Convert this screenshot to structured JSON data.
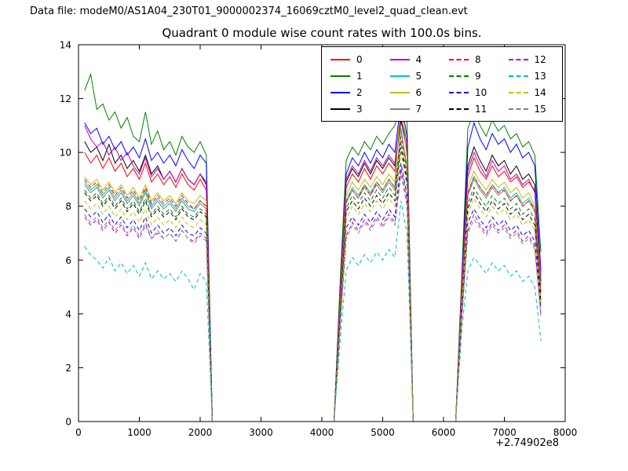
{
  "header": {
    "data_file_label": "Data file: modeM0/AS1A04_230T01_9000002374_16069cztM0_level2_quad_clean.evt"
  },
  "chart_data": {
    "type": "line",
    "title": "Quadrant 0 module wise count rates with 100.0s bins.",
    "xlabel": "",
    "ylabel": "",
    "xlim": [
      0,
      8000
    ],
    "ylim": [
      0,
      14
    ],
    "xticks": [
      0,
      1000,
      2000,
      3000,
      4000,
      5000,
      6000,
      7000,
      8000
    ],
    "yticks": [
      0,
      2,
      4,
      6,
      8,
      10,
      12,
      14
    ],
    "x_offset_label": "+2.74902e8",
    "legend_position": "upper right",
    "grid": false,
    "x": [
      100,
      200,
      300,
      400,
      500,
      600,
      700,
      800,
      900,
      1000,
      1100,
      1200,
      1300,
      1400,
      1500,
      1600,
      1700,
      1800,
      1900,
      2000,
      2100,
      2200,
      4200,
      4300,
      4400,
      4500,
      4600,
      4700,
      4800,
      4900,
      5000,
      5100,
      5200,
      5300,
      5400,
      5500,
      6200,
      6300,
      6400,
      6500,
      6600,
      6700,
      6800,
      6900,
      7000,
      7100,
      7200,
      7300,
      7400,
      7500,
      7600
    ],
    "series": [
      {
        "name": "0",
        "color": "#ff0000",
        "dash": false,
        "values": [
          10.0,
          9.6,
          9.9,
          9.4,
          9.8,
          9.3,
          9.6,
          9.1,
          9.4,
          9.0,
          9.6,
          8.9,
          9.2,
          8.8,
          9.1,
          8.7,
          9.2,
          8.8,
          8.6,
          9.0,
          8.6,
          0,
          0,
          4.5,
          8.7,
          9.2,
          8.9,
          9.4,
          9.0,
          9.5,
          9.2,
          9.6,
          9.3,
          11.3,
          10.0,
          0,
          0,
          4.9,
          9.1,
          9.8,
          9.3,
          9.0,
          9.5,
          9.1,
          9.3,
          8.9,
          9.1,
          8.7,
          8.9,
          8.6,
          5.0
        ]
      },
      {
        "name": "1",
        "color": "#008000",
        "dash": false,
        "values": [
          12.3,
          12.9,
          11.6,
          11.8,
          11.2,
          11.5,
          10.9,
          11.3,
          10.6,
          10.4,
          11.5,
          10.3,
          10.8,
          10.1,
          10.4,
          9.9,
          10.6,
          10.2,
          10.0,
          10.4,
          9.9,
          0,
          0,
          5.2,
          9.7,
          10.2,
          9.9,
          10.4,
          10.1,
          10.6,
          10.3,
          10.7,
          11.0,
          12.1,
          11.2,
          0,
          0,
          5.5,
          10.9,
          11.5,
          11.0,
          10.6,
          11.2,
          10.8,
          11.0,
          10.5,
          10.7,
          10.2,
          10.4,
          9.9,
          6.3
        ]
      },
      {
        "name": "2",
        "color": "#0000ff",
        "dash": false,
        "values": [
          11.1,
          10.7,
          10.9,
          10.3,
          10.6,
          10.1,
          10.4,
          9.9,
          10.2,
          9.8,
          10.5,
          9.7,
          10.0,
          9.6,
          9.9,
          9.5,
          10.1,
          9.7,
          9.4,
          9.9,
          9.6,
          0,
          0,
          4.8,
          9.2,
          9.8,
          9.5,
          10.0,
          9.6,
          10.1,
          9.8,
          10.3,
          10.0,
          11.9,
          10.6,
          0,
          0,
          5.2,
          10.2,
          11.1,
          10.5,
          10.1,
          10.7,
          10.3,
          10.5,
          10.0,
          10.3,
          9.8,
          10.0,
          9.5,
          5.6
        ]
      },
      {
        "name": "3",
        "color": "#000000",
        "dash": false,
        "values": [
          10.4,
          10.0,
          10.2,
          9.7,
          10.3,
          9.6,
          9.9,
          9.4,
          9.7,
          9.3,
          9.9,
          9.2,
          9.5,
          9.0,
          9.3,
          8.9,
          9.4,
          9.0,
          8.8,
          9.2,
          8.8,
          0,
          0,
          4.6,
          8.9,
          9.4,
          9.1,
          9.6,
          9.2,
          9.7,
          9.4,
          9.8,
          9.5,
          11.2,
          10.1,
          0,
          0,
          5.0,
          9.5,
          10.2,
          9.7,
          9.3,
          9.9,
          9.5,
          9.7,
          9.2,
          9.5,
          9.0,
          9.2,
          8.8,
          5.2
        ]
      },
      {
        "name": "4",
        "color": "#bf00bf",
        "dash": false,
        "values": [
          11.0,
          10.5,
          10.2,
          10.4,
          9.9,
          10.2,
          9.7,
          10.0,
          9.5,
          9.2,
          9.8,
          9.1,
          9.4,
          9.0,
          9.3,
          8.9,
          9.4,
          9.0,
          8.8,
          9.2,
          8.9,
          0,
          0,
          4.7,
          9.0,
          9.5,
          9.2,
          9.7,
          9.3,
          9.8,
          9.5,
          9.9,
          9.6,
          11.6,
          10.3,
          0,
          0,
          5.1,
          9.3,
          10.0,
          9.5,
          9.1,
          9.7,
          9.3,
          9.5,
          9.0,
          9.2,
          8.8,
          9.0,
          8.5,
          5.4
        ]
      },
      {
        "name": "5",
        "color": "#00bfbf",
        "dash": false,
        "values": [
          8.9,
          8.6,
          8.8,
          8.4,
          8.7,
          8.3,
          8.6,
          8.2,
          8.5,
          8.1,
          8.6,
          8.0,
          8.3,
          8.0,
          8.2,
          7.9,
          8.3,
          8.0,
          7.9,
          8.2,
          8.0,
          0,
          0,
          4.2,
          8.2,
          8.7,
          8.4,
          8.8,
          8.5,
          8.9,
          8.6,
          9.0,
          8.7,
          10.8,
          9.5,
          0,
          0,
          4.6,
          8.5,
          9.1,
          8.7,
          8.4,
          8.8,
          8.5,
          8.7,
          8.3,
          8.5,
          8.1,
          8.3,
          7.9,
          4.8
        ]
      },
      {
        "name": "6",
        "color": "#bfbf00",
        "dash": false,
        "values": [
          9.1,
          8.8,
          9.0,
          8.6,
          8.9,
          8.5,
          8.8,
          8.4,
          8.7,
          8.3,
          8.8,
          8.2,
          8.5,
          8.2,
          8.4,
          8.1,
          8.5,
          8.2,
          8.1,
          8.4,
          8.2,
          0,
          0,
          4.3,
          8.4,
          8.9,
          8.6,
          9.0,
          8.7,
          9.1,
          8.8,
          9.2,
          8.9,
          11.9,
          9.8,
          0,
          0,
          4.7,
          8.7,
          9.3,
          8.9,
          8.6,
          9.0,
          8.7,
          8.9,
          8.5,
          8.7,
          8.3,
          8.5,
          8.0,
          5.0
        ]
      },
      {
        "name": "7",
        "color": "#7f7f7f",
        "dash": false,
        "values": [
          8.8,
          8.5,
          8.7,
          8.3,
          8.6,
          8.2,
          8.5,
          8.1,
          8.4,
          8.0,
          8.5,
          7.9,
          8.2,
          7.9,
          8.1,
          7.8,
          8.2,
          7.9,
          7.8,
          8.1,
          7.9,
          0,
          0,
          4.1,
          8.1,
          8.6,
          8.3,
          8.7,
          8.4,
          8.8,
          8.5,
          8.9,
          8.6,
          10.9,
          9.4,
          0,
          0,
          4.5,
          8.4,
          9.0,
          8.6,
          8.3,
          8.7,
          8.4,
          8.6,
          8.2,
          8.4,
          8.0,
          8.2,
          7.8,
          4.9
        ]
      },
      {
        "name": "8",
        "color": "#ff0000",
        "dash": true,
        "values": [
          9.0,
          8.7,
          8.9,
          8.5,
          8.8,
          8.4,
          8.7,
          8.3,
          8.6,
          8.2,
          8.7,
          8.1,
          8.4,
          8.1,
          8.3,
          8.0,
          8.4,
          8.1,
          7.9,
          8.2,
          8.0,
          0,
          0,
          4.2,
          8.2,
          8.6,
          8.3,
          8.8,
          8.4,
          8.9,
          8.6,
          9.0,
          8.7,
          10.6,
          9.3,
          0,
          0,
          4.6,
          8.5,
          9.1,
          8.7,
          8.4,
          8.8,
          8.5,
          8.6,
          8.2,
          8.4,
          8.0,
          8.2,
          7.9,
          4.7
        ]
      },
      {
        "name": "9",
        "color": "#008000",
        "dash": true,
        "values": [
          8.6,
          8.3,
          8.5,
          8.1,
          8.4,
          8.0,
          8.3,
          7.9,
          8.2,
          7.8,
          8.3,
          7.7,
          8.0,
          7.7,
          7.9,
          7.6,
          8.0,
          7.7,
          7.6,
          7.9,
          7.7,
          0,
          0,
          4.0,
          7.9,
          8.4,
          8.1,
          8.5,
          8.2,
          8.6,
          8.3,
          8.7,
          8.4,
          10.4,
          9.1,
          0,
          0,
          4.4,
          8.1,
          8.7,
          8.3,
          8.0,
          8.4,
          8.1,
          8.3,
          7.9,
          8.1,
          7.7,
          7.9,
          7.5,
          4.5
        ]
      },
      {
        "name": "10",
        "color": "#0000ff",
        "dash": true,
        "values": [
          7.9,
          7.6,
          7.8,
          7.4,
          7.7,
          7.3,
          7.6,
          7.2,
          7.5,
          7.1,
          7.6,
          7.0,
          7.3,
          7.0,
          7.2,
          6.9,
          7.3,
          7.0,
          6.9,
          7.2,
          7.0,
          0,
          0,
          3.7,
          7.2,
          7.6,
          7.3,
          7.7,
          7.4,
          7.8,
          7.5,
          7.9,
          7.6,
          9.6,
          8.4,
          0,
          0,
          4.0,
          7.4,
          7.9,
          7.5,
          7.2,
          7.6,
          7.3,
          7.5,
          7.1,
          7.3,
          6.9,
          7.1,
          6.7,
          4.2
        ]
      },
      {
        "name": "11",
        "color": "#000000",
        "dash": true,
        "values": [
          8.5,
          8.2,
          8.4,
          8.0,
          8.3,
          7.9,
          8.2,
          7.8,
          8.1,
          7.7,
          8.2,
          7.6,
          7.9,
          7.6,
          7.8,
          7.5,
          7.9,
          7.6,
          7.5,
          7.8,
          7.6,
          0,
          0,
          3.9,
          7.8,
          8.2,
          7.9,
          8.3,
          8.0,
          8.4,
          8.1,
          8.5,
          8.2,
          10.2,
          8.9,
          0,
          0,
          4.3,
          7.9,
          8.5,
          8.1,
          7.8,
          8.2,
          7.9,
          8.1,
          7.7,
          7.9,
          7.5,
          7.7,
          7.3,
          4.4
        ]
      },
      {
        "name": "12",
        "color": "#bf00bf",
        "dash": true,
        "values": [
          7.6,
          7.3,
          7.5,
          7.1,
          7.4,
          7.0,
          7.3,
          6.9,
          7.2,
          6.8,
          7.3,
          6.8,
          7.0,
          6.8,
          7.0,
          6.7,
          7.1,
          6.8,
          6.7,
          7.0,
          6.8,
          0,
          0,
          3.5,
          6.9,
          7.4,
          7.1,
          7.5,
          7.2,
          7.6,
          7.3,
          7.7,
          7.4,
          9.4,
          8.2,
          0,
          0,
          3.9,
          7.1,
          7.7,
          7.3,
          7.0,
          7.4,
          7.1,
          7.3,
          6.9,
          7.1,
          6.7,
          6.9,
          6.5,
          4.0
        ]
      },
      {
        "name": "13",
        "color": "#00bfbf",
        "dash": true,
        "values": [
          6.5,
          6.2,
          6.0,
          5.7,
          6.1,
          5.6,
          5.9,
          5.5,
          5.8,
          5.4,
          5.9,
          5.3,
          5.6,
          5.3,
          5.5,
          5.2,
          5.6,
          5.3,
          4.9,
          5.5,
          5.2,
          0,
          0,
          3.0,
          5.6,
          6.1,
          5.8,
          6.2,
          5.9,
          6.3,
          6.0,
          6.4,
          6.1,
          8.2,
          7.0,
          0,
          0,
          3.4,
          5.6,
          6.1,
          5.8,
          5.5,
          5.9,
          5.6,
          5.8,
          5.4,
          5.6,
          5.2,
          5.4,
          5.0,
          3.0
        ]
      },
      {
        "name": "14",
        "color": "#bfbf00",
        "dash": true,
        "values": [
          8.2,
          7.9,
          8.1,
          7.7,
          8.0,
          7.6,
          7.9,
          7.5,
          7.8,
          7.4,
          7.9,
          7.3,
          7.6,
          7.3,
          7.5,
          7.2,
          7.6,
          7.3,
          7.2,
          7.5,
          7.3,
          0,
          0,
          3.8,
          7.5,
          8.0,
          7.7,
          8.1,
          7.8,
          8.2,
          7.9,
          8.3,
          8.0,
          10.0,
          8.7,
          0,
          0,
          4.2,
          7.7,
          8.3,
          7.9,
          7.6,
          8.0,
          7.7,
          7.9,
          7.5,
          7.7,
          7.3,
          7.5,
          7.1,
          4.3
        ]
      },
      {
        "name": "15",
        "color": "#7f7f7f",
        "dash": true,
        "values": [
          7.7,
          7.4,
          7.6,
          7.2,
          7.5,
          7.1,
          7.4,
          7.0,
          7.3,
          6.9,
          7.4,
          6.8,
          7.1,
          6.8,
          7.0,
          6.7,
          7.1,
          6.8,
          6.6,
          6.9,
          6.7,
          0,
          0,
          3.6,
          6.8,
          7.3,
          7.0,
          7.4,
          7.1,
          7.5,
          7.2,
          7.6,
          7.3,
          9.2,
          8.0,
          0,
          0,
          3.8,
          7.0,
          7.5,
          7.2,
          6.9,
          7.3,
          7.0,
          7.2,
          6.8,
          7.0,
          6.6,
          6.8,
          6.4,
          3.9
        ]
      }
    ]
  }
}
